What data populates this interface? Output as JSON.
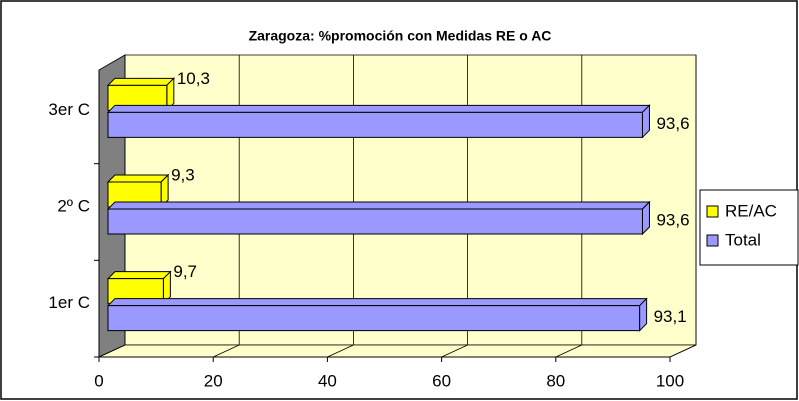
{
  "chart_data": {
    "type": "bar",
    "orientation": "horizontal",
    "three_d": true,
    "title": "Zaragoza: %promoción con Medidas RE o AC",
    "categories": [
      "1er C",
      "2º C",
      "3er C"
    ],
    "series": [
      {
        "name": "RE/AC",
        "color": "#ffff00",
        "values": [
          9.7,
          9.3,
          10.3
        ],
        "value_labels": [
          "9,7",
          "9,3",
          "10,3"
        ]
      },
      {
        "name": "Total",
        "color": "#9999ff",
        "values": [
          93.1,
          93.6,
          93.6
        ],
        "value_labels": [
          "93,1",
          "93,6",
          "93,6"
        ]
      }
    ],
    "xlim": [
      0,
      100
    ],
    "xticks": [
      0,
      20,
      40,
      60,
      80,
      100
    ],
    "grid": true,
    "legend": "right"
  }
}
